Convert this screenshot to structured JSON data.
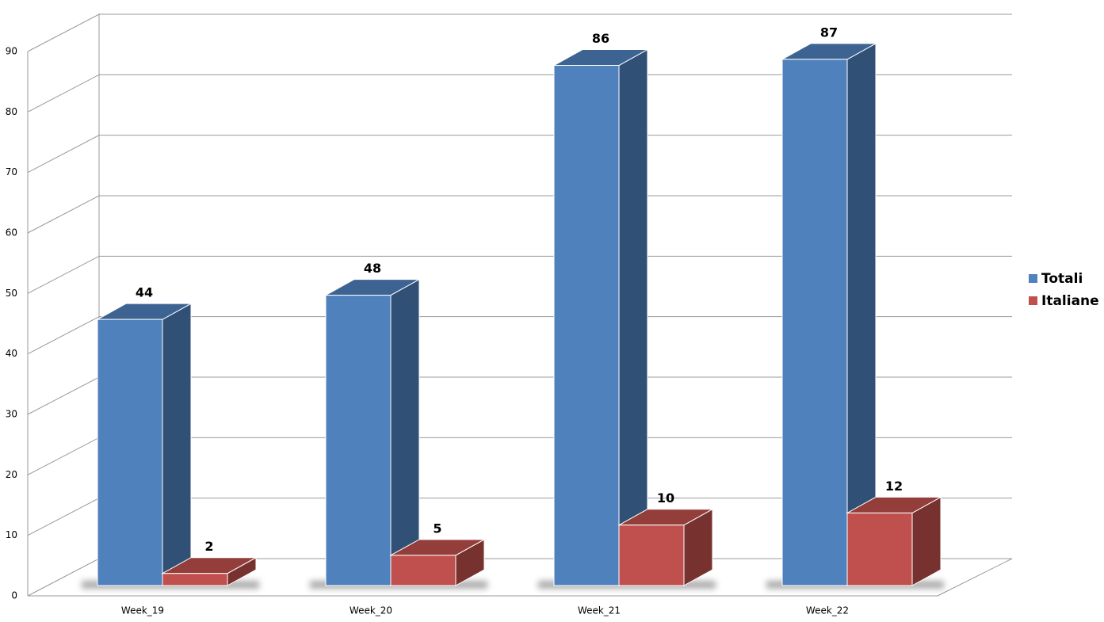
{
  "chart_data": {
    "type": "bar3d",
    "categories": [
      "Week_19",
      "Week_20",
      "Week_21",
      "Week_22"
    ],
    "series": [
      {
        "name": "Totali",
        "color": "#4f81bd",
        "values": [
          44,
          48,
          86,
          87
        ]
      },
      {
        "name": "Italiane",
        "color": "#c0504d",
        "values": [
          2,
          5,
          10,
          12
        ]
      }
    ],
    "ylim": [
      0,
      90
    ],
    "yticks": [
      0,
      10,
      20,
      30,
      40,
      50,
      60,
      70,
      80,
      90
    ],
    "grid": true,
    "legend": "right",
    "data_labels": true
  }
}
